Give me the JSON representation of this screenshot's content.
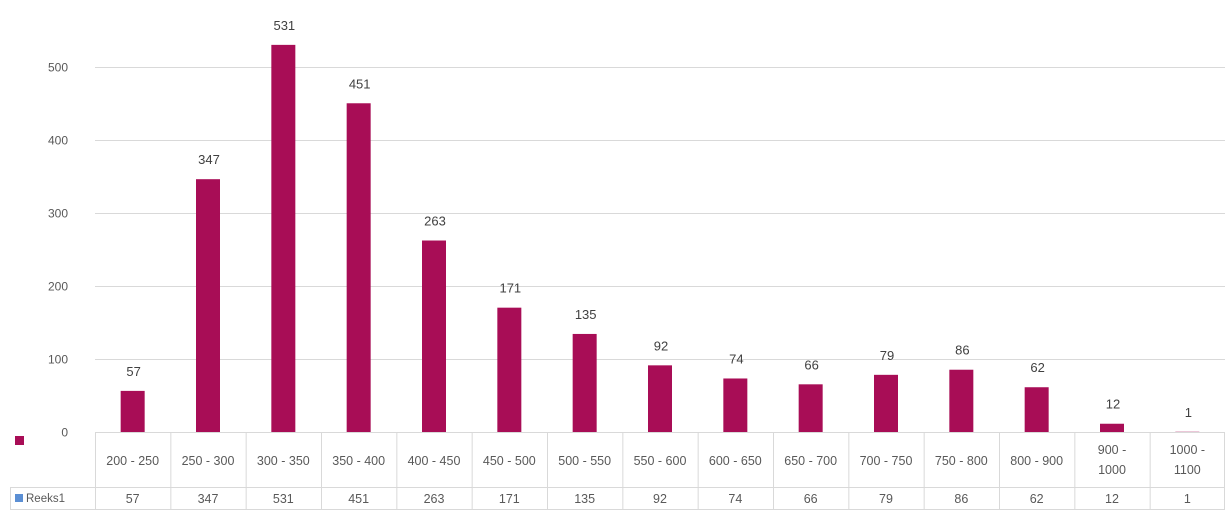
{
  "chart_data": {
    "type": "bar",
    "categories": [
      "200 - 250",
      "250 - 300",
      "300 - 350",
      "350 - 400",
      "400 - 450",
      "450 - 500",
      "500 - 550",
      "550 - 600",
      "600 - 650",
      "650 - 700",
      "700 - 750",
      "750 - 800",
      "800 - 900",
      "900 - 1000",
      "1000 - 1100"
    ],
    "category_lines": [
      [
        "200 - 250"
      ],
      [
        "250 - 300"
      ],
      [
        "300 - 350"
      ],
      [
        "350 - 400"
      ],
      [
        "400 - 450"
      ],
      [
        "450 - 500"
      ],
      [
        "500 - 550"
      ],
      [
        "550 - 600"
      ],
      [
        "600 - 650"
      ],
      [
        "650 - 700"
      ],
      [
        "700 - 750"
      ],
      [
        "750 - 800"
      ],
      [
        "800 - 900"
      ],
      [
        "900 -",
        "1000"
      ],
      [
        "1000 -",
        "1100"
      ]
    ],
    "series": [
      {
        "name": "Reeks1",
        "color": "#a80d56",
        "values": [
          57,
          347,
          531,
          451,
          263,
          171,
          135,
          92,
          74,
          66,
          79,
          86,
          62,
          12,
          1
        ]
      }
    ],
    "ylim": [
      0,
      531
    ],
    "yticks": [
      0,
      100,
      200,
      300,
      400,
      500
    ],
    "grid": true,
    "data_labels": true,
    "data_table": true,
    "legend": "left"
  }
}
